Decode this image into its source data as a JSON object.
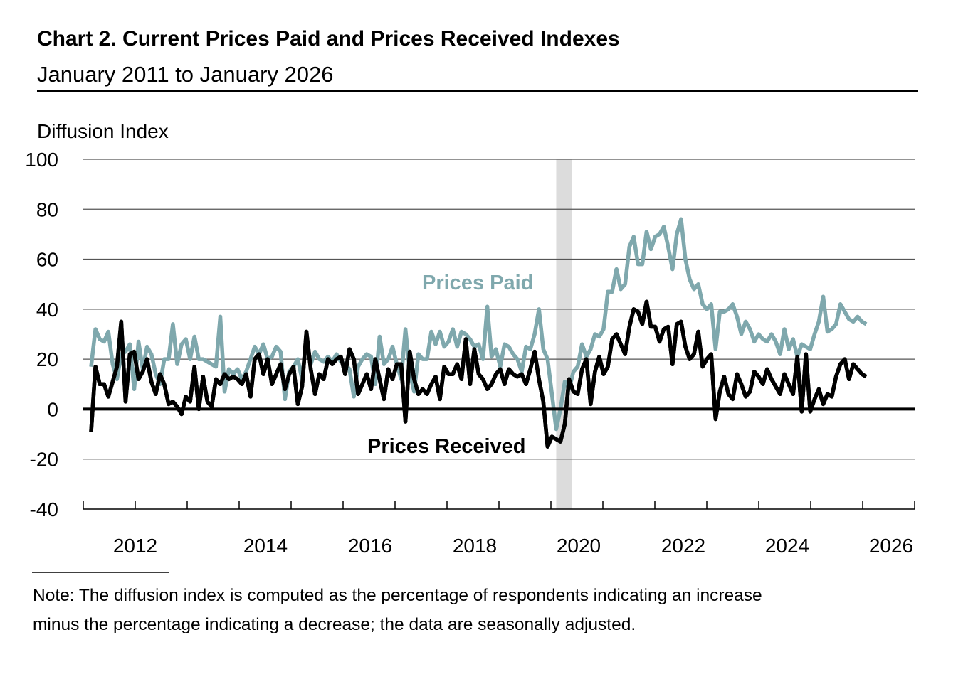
{
  "title": "Chart 2. Current Prices Paid and Prices Received Indexes",
  "subtitle": "January 2011 to January 2026",
  "note": {
    "line1": "Note: The diffusion index is computed as the percentage of respondents indicating an increase",
    "line2": "minus the percentage indicating a decrease; the data are seasonally adjusted."
  },
  "chart_data": {
    "type": "line",
    "title": "Chart 2. Current Prices Paid and Prices Received Indexes",
    "subtitle": "January 2011 to January 2026",
    "ylabel": "Diffusion Index",
    "xlabel": "",
    "ylim": [
      -40,
      100
    ],
    "yticks": [
      "100",
      "80",
      "60",
      "40",
      "20",
      "0",
      "-20",
      "-40"
    ],
    "xtick_labels": [
      "2012",
      "2014",
      "2016",
      "2018",
      "2020",
      "2022",
      "2024",
      "2026"
    ],
    "x_start": "2011-01",
    "x_end": "2026-01",
    "frequency": "monthly",
    "grid": true,
    "recession_shading": {
      "start": "2020-02",
      "end": "2020-04",
      "color": "#dcdcdc"
    },
    "series": [
      {
        "name": "Prices Paid",
        "color": "#7fa8ad",
        "values": [
          17,
          32,
          28,
          27,
          31,
          18,
          12,
          22,
          23,
          26,
          8,
          27,
          16,
          25,
          22,
          14,
          10,
          20,
          20,
          34,
          18,
          26,
          28,
          20,
          29,
          20,
          20,
          19,
          18,
          17,
          37,
          7,
          16,
          14,
          16,
          12,
          15,
          20,
          25,
          22,
          26,
          20,
          21,
          25,
          23,
          4,
          15,
          17,
          20,
          12,
          29,
          18,
          23,
          20,
          19,
          21,
          19,
          22,
          19,
          18,
          16,
          5,
          17,
          20,
          22,
          21,
          10,
          29,
          18,
          20,
          25,
          18,
          12,
          32,
          15,
          7,
          22,
          20,
          20,
          31,
          26,
          31,
          25,
          27,
          32,
          25,
          31,
          30,
          28,
          25,
          26,
          20,
          41,
          21,
          24,
          17,
          26,
          25,
          22,
          20,
          15,
          25,
          24,
          30,
          40,
          24,
          20,
          6,
          -8,
          0,
          11,
          8,
          15,
          17,
          26,
          21,
          24,
          30,
          29,
          32,
          47,
          47,
          56,
          48,
          50,
          65,
          69,
          58,
          58,
          71,
          64,
          69,
          70,
          73,
          65,
          56,
          70,
          76,
          60,
          52,
          48,
          50,
          42,
          40,
          42,
          24,
          39,
          39,
          40,
          42,
          37,
          30,
          35,
          32,
          27,
          30,
          28,
          27,
          30,
          27,
          22,
          32,
          24,
          28,
          21,
          26,
          25,
          24,
          30,
          35,
          45,
          31,
          32,
          34,
          42,
          39,
          36,
          35,
          37,
          35,
          34
        ]
      },
      {
        "name": "Prices Received",
        "color": "#000000",
        "values": [
          -9,
          17,
          10,
          10,
          5,
          11,
          17,
          35,
          3,
          22,
          23,
          12,
          15,
          20,
          11,
          6,
          14,
          10,
          2,
          3,
          1,
          -2,
          5,
          3,
          17,
          0,
          13,
          3,
          1,
          12,
          10,
          14,
          12,
          13,
          12,
          10,
          14,
          5,
          20,
          22,
          14,
          20,
          10,
          14,
          18,
          8,
          14,
          17,
          2,
          9,
          31,
          16,
          6,
          14,
          12,
          20,
          18,
          20,
          21,
          14,
          24,
          20,
          6,
          10,
          14,
          8,
          20,
          12,
          4,
          16,
          12,
          18,
          18,
          -5,
          23,
          12,
          6,
          8,
          6,
          10,
          13,
          4,
          17,
          14,
          14,
          18,
          12,
          28,
          10,
          24,
          14,
          12,
          8,
          10,
          14,
          16,
          10,
          16,
          14,
          13,
          14,
          10,
          16,
          23,
          12,
          3,
          -15,
          -11,
          -12,
          -13,
          -6,
          12,
          7,
          6,
          16,
          20,
          2,
          15,
          21,
          14,
          17,
          28,
          30,
          26,
          22,
          33,
          40,
          39,
          34,
          43,
          33,
          33,
          27,
          32,
          33,
          18,
          34,
          35,
          25,
          20,
          22,
          31,
          17,
          20,
          22,
          -4,
          7,
          13,
          6,
          4,
          14,
          10,
          5,
          7,
          15,
          13,
          10,
          16,
          12,
          9,
          6,
          14,
          10,
          6,
          21,
          -1,
          22,
          -1,
          4,
          8,
          2,
          6,
          5,
          13,
          18,
          20,
          12,
          18,
          16,
          14,
          13
        ]
      }
    ],
    "annotations": [
      "Prices Paid",
      "Prices Received"
    ]
  }
}
